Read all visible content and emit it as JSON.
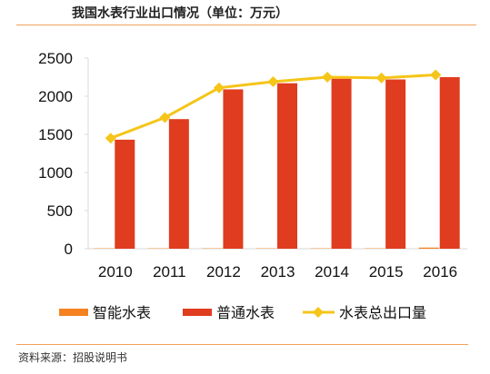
{
  "title": "我国水表行业出口情况（单位：万元）",
  "source": "资料来源：招股说明书",
  "chart_data": {
    "type": "bar+line",
    "title": "我国水表行业出口情况（单位：万元）",
    "categories": [
      "2010",
      "2011",
      "2012",
      "2013",
      "2014",
      "2015",
      "2016"
    ],
    "ylim": [
      0,
      2500
    ],
    "yticks": [
      "0",
      "500",
      "1000",
      "1500",
      "2000",
      "2500"
    ],
    "grid": false,
    "legend_position": "bottom",
    "series": [
      {
        "name": "智能水表",
        "type": "bar",
        "color": "#f58220",
        "values": [
          5,
          5,
          5,
          5,
          5,
          5,
          15
        ]
      },
      {
        "name": "普通水表",
        "type": "bar",
        "color": "#e03c1f",
        "values": [
          1430,
          1700,
          2090,
          2170,
          2230,
          2220,
          2250
        ]
      },
      {
        "name": "水表总出口量",
        "type": "line",
        "color": "#f5c518",
        "values": [
          1450,
          1720,
          2110,
          2190,
          2250,
          2240,
          2280
        ]
      }
    ]
  }
}
